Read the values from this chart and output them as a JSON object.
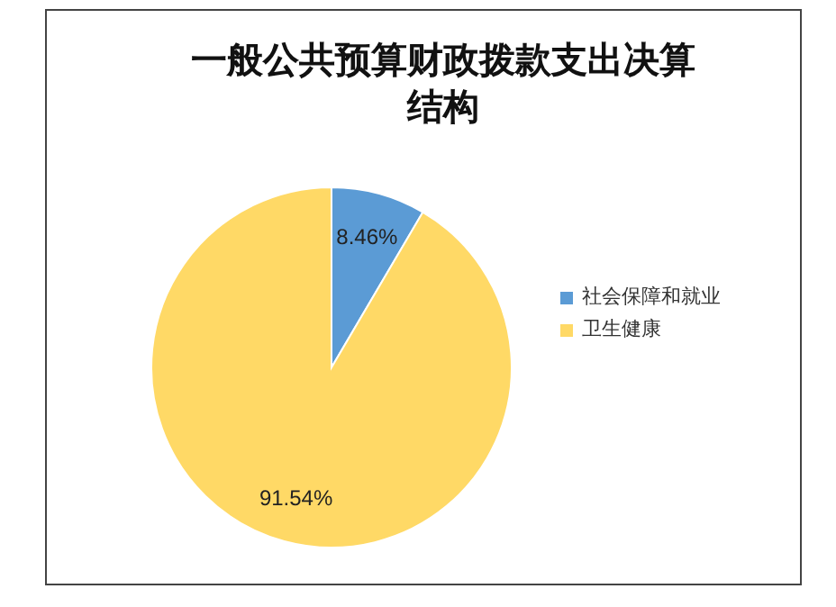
{
  "chart_data": {
    "type": "pie",
    "title": "一般公共预算财政拨款支出决算结构",
    "categories": [
      "社会保障和就业",
      "卫生健康"
    ],
    "values": [
      8.46,
      91.54
    ],
    "colors": [
      "#5b9bd5",
      "#ffd966"
    ],
    "value_labels": [
      "8.46%",
      "91.54%"
    ],
    "legend": "right"
  }
}
